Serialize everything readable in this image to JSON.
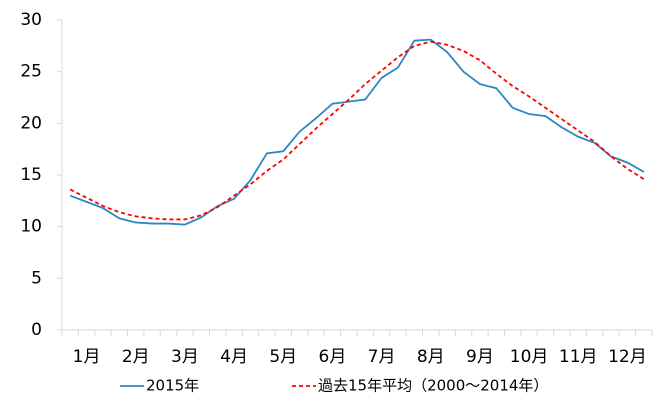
{
  "chart_data": {
    "type": "line",
    "categories": [
      null,
      "1月",
      null,
      null,
      "2月",
      null,
      null,
      "3月",
      null,
      null,
      "4月",
      null,
      null,
      "5月",
      null,
      null,
      "6月",
      null,
      null,
      "7月",
      null,
      null,
      "8月",
      null,
      null,
      "9月",
      null,
      null,
      "10月",
      null,
      null,
      "11月",
      null,
      null,
      "12月",
      null
    ],
    "series": [
      {
        "name": "2015年",
        "color": "#2e86c1",
        "dash": false,
        "values": [
          13.0,
          12.4,
          11.8,
          10.8,
          10.4,
          10.3,
          10.3,
          10.2,
          10.9,
          12.0,
          12.7,
          14.5,
          17.1,
          17.3,
          19.2,
          20.5,
          21.9,
          22.1,
          22.3,
          24.4,
          25.4,
          28.0,
          28.1,
          26.9,
          25.0,
          23.8,
          23.4,
          21.5,
          20.9,
          20.7,
          19.6,
          18.7,
          18.1,
          16.8,
          16.2,
          15.3
        ]
      },
      {
        "name": "過去15年平均（2000～2014年）",
        "color": "#ff0000",
        "dash": true,
        "values": [
          13.6,
          12.8,
          12.0,
          11.4,
          11.0,
          10.8,
          10.7,
          10.7,
          11.1,
          11.9,
          13.0,
          14.1,
          15.4,
          16.5,
          18.0,
          19.5,
          20.9,
          22.3,
          23.8,
          25.1,
          26.4,
          27.5,
          27.9,
          27.6,
          27.0,
          26.1,
          24.8,
          23.6,
          22.6,
          21.5,
          20.4,
          19.3,
          18.2,
          16.8,
          15.6,
          14.6
        ]
      }
    ],
    "ylim": [
      0,
      30
    ],
    "yticks": [
      0,
      5,
      10,
      15,
      20,
      25,
      30
    ],
    "grid": false,
    "legend": "bottom"
  }
}
